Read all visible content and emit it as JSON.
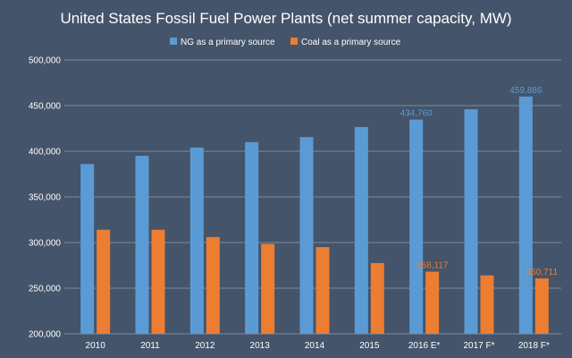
{
  "chart_data": {
    "type": "bar",
    "title": "United States Fossil Fuel Power Plants (net summer capacity, MW)",
    "categories": [
      "2010",
      "2011",
      "2012",
      "2013",
      "2014",
      "2015",
      "2016 E*",
      "2017 F*",
      "2018 F*"
    ],
    "series": [
      {
        "name": "NG as a primary source",
        "color": "#5b9bd5",
        "values": [
          386000,
          395000,
          404000,
          410000,
          415500,
          426500,
          434760,
          446000,
          459886
        ],
        "data_labels": [
          null,
          null,
          null,
          null,
          null,
          null,
          "434,760",
          null,
          "459,886"
        ]
      },
      {
        "name": "Coal as a primary source",
        "color": "#ed7d31",
        "values": [
          314000,
          314000,
          306000,
          298500,
          295000,
          277500,
          268117,
          264000,
          260711
        ],
        "data_labels": [
          null,
          null,
          null,
          null,
          null,
          null,
          "268,117",
          null,
          "260,711"
        ]
      }
    ],
    "ylim": [
      200000,
      500000
    ],
    "yticks": [
      "200,000",
      "250,000",
      "300,000",
      "350,000",
      "400,000",
      "450,000",
      "500,000"
    ],
    "ytick_values": [
      200000,
      250000,
      300000,
      350000,
      400000,
      450000,
      500000
    ],
    "grid": true,
    "legend_position": "top-center",
    "background": "#44546a"
  }
}
